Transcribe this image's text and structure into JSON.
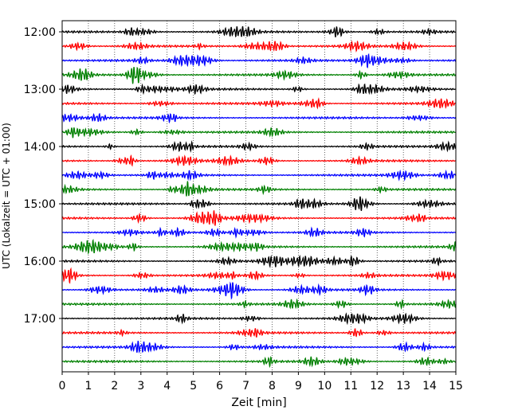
{
  "chart_data": {
    "type": "line",
    "title": "",
    "xlabel": "Zeit  [min]",
    "ylabel": "UTC (Lokalzeit = UTC + 01:00)",
    "xlim": [
      0,
      15
    ],
    "x_ticks": [
      "0",
      "1",
      "2",
      "3",
      "4",
      "5",
      "6",
      "7",
      "8",
      "9",
      "10",
      "11",
      "12",
      "13",
      "14",
      "15"
    ],
    "y_tick_labels": [
      "12:00",
      "13:00",
      "14:00",
      "15:00",
      "16:00",
      "17:00"
    ],
    "grid": "vertical dotted lines at each minute",
    "trace_interval_min": 15,
    "trace_colors": [
      "#000000",
      "#ff0000",
      "#0000ff",
      "#008000"
    ],
    "traces": [
      {
        "start": "12:00",
        "color": "#000000"
      },
      {
        "start": "12:15",
        "color": "#ff0000"
      },
      {
        "start": "12:30",
        "color": "#0000ff"
      },
      {
        "start": "12:45",
        "color": "#008000"
      },
      {
        "start": "13:00",
        "color": "#000000"
      },
      {
        "start": "13:15",
        "color": "#ff0000"
      },
      {
        "start": "13:30",
        "color": "#0000ff"
      },
      {
        "start": "13:45",
        "color": "#008000"
      },
      {
        "start": "14:00",
        "color": "#000000"
      },
      {
        "start": "14:15",
        "color": "#ff0000"
      },
      {
        "start": "14:30",
        "color": "#0000ff"
      },
      {
        "start": "14:45",
        "color": "#008000"
      },
      {
        "start": "15:00",
        "color": "#000000"
      },
      {
        "start": "15:15",
        "color": "#ff0000"
      },
      {
        "start": "15:30",
        "color": "#0000ff"
      },
      {
        "start": "15:45",
        "color": "#008000"
      },
      {
        "start": "16:00",
        "color": "#000000"
      },
      {
        "start": "16:15",
        "color": "#ff0000"
      },
      {
        "start": "16:30",
        "color": "#0000ff"
      },
      {
        "start": "16:45",
        "color": "#008000"
      },
      {
        "start": "17:00",
        "color": "#000000"
      },
      {
        "start": "17:15",
        "color": "#ff0000"
      },
      {
        "start": "17:30",
        "color": "#0000ff"
      },
      {
        "start": "17:45",
        "color": "#008000"
      }
    ]
  }
}
